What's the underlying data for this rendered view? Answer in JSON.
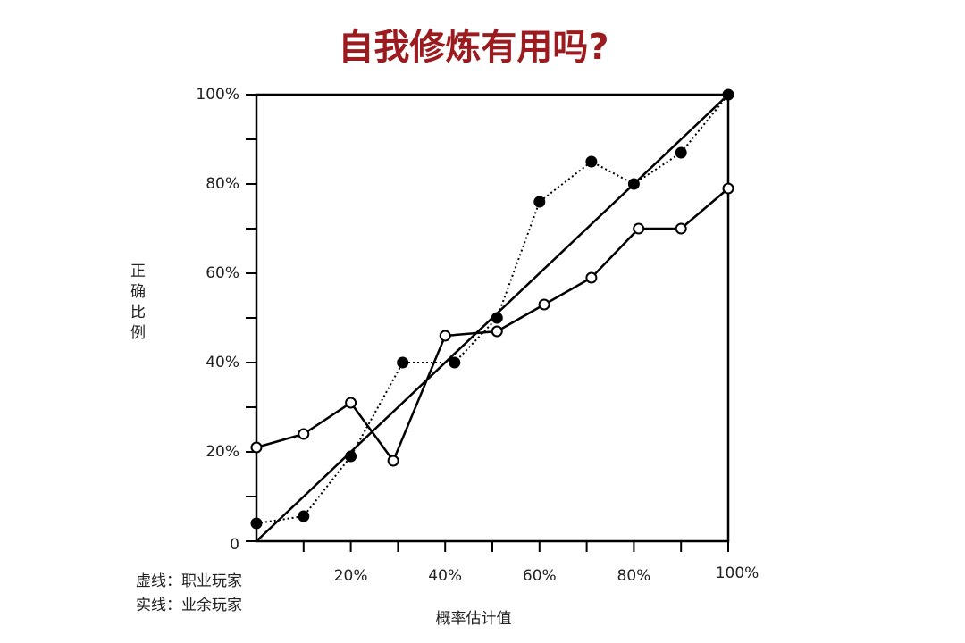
{
  "chart_data": {
    "type": "line",
    "title": "自我修炼有用吗?",
    "x_label": "概率估计值",
    "y_label": "正确比例",
    "notes": [
      "虚线：职业玩家",
      "实线：业余玩家"
    ],
    "xlim": [
      0,
      100
    ],
    "ylim": [
      0,
      100
    ],
    "xticks": [
      {
        "value": 20,
        "label": "20%"
      },
      {
        "value": 40,
        "label": "40%"
      },
      {
        "value": 60,
        "label": "60%"
      },
      {
        "value": 80,
        "label": "80%"
      },
      {
        "value": 100,
        "label": "100%"
      }
    ],
    "xminorticks": [
      10,
      30,
      50,
      70,
      90
    ],
    "yticks": [
      0,
      {
        "value": 20,
        "label": "20%"
      },
      {
        "value": 40,
        "label": "40%"
      },
      {
        "value": 60,
        "label": "60%"
      },
      {
        "value": 80,
        "label": "80%"
      },
      {
        "value": 100,
        "label": "100%"
      }
    ],
    "yminorticks": [
      10,
      30,
      50,
      70,
      90
    ],
    "series": [
      {
        "dash": "dotted",
        "color": "#000000",
        "marker_fill": "#000000",
        "x": [
          0,
          10,
          20,
          31,
          42,
          51,
          60,
          71,
          80,
          90,
          100
        ],
        "values": [
          4,
          5.6,
          19,
          40,
          40,
          50,
          76,
          85,
          80,
          87,
          100
        ]
      },
      {
        "dash": "solid",
        "color": "#000000",
        "marker_fill": "#ffffff",
        "x": [
          0,
          10,
          20,
          29,
          40,
          51,
          61,
          71,
          81,
          90,
          100
        ],
        "values": [
          21,
          24,
          31,
          18,
          46,
          47,
          53,
          59,
          70,
          70,
          79
        ]
      }
    ],
    "reference_line": {
      "x": [
        0,
        100
      ],
      "values": [
        0,
        100
      ]
    }
  }
}
